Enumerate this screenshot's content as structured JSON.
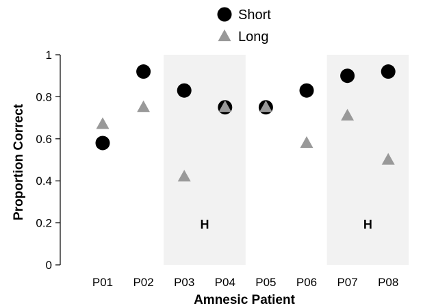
{
  "chart_data": {
    "type": "scatter",
    "categories": [
      "P01",
      "P02",
      "P03",
      "P04",
      "P05",
      "P06",
      "P07",
      "P08"
    ],
    "series": [
      {
        "name": "Short",
        "marker": "circle",
        "color": "#000000",
        "values": [
          0.58,
          0.92,
          0.83,
          0.75,
          0.75,
          0.83,
          0.9,
          0.92
        ]
      },
      {
        "name": "Long",
        "marker": "triangle",
        "color": "#999999",
        "values": [
          0.67,
          0.75,
          0.42,
          0.75,
          0.75,
          0.58,
          0.71,
          0.5
        ]
      }
    ],
    "xlabel": "Amnesic Patient",
    "ylabel": "Proportion Correct",
    "ylim": [
      0,
      1
    ],
    "yticks": [
      0,
      0.2,
      0.4,
      0.6,
      0.8,
      1
    ],
    "ytick_labels": [
      "0",
      "0.2",
      "0.4",
      "0.6",
      "0.8",
      "1"
    ],
    "legend_position": "top-center",
    "grid": false,
    "shaded_bands": [
      {
        "categories": [
          "P03",
          "P04"
        ],
        "label": "H",
        "color": "#f2f2f2"
      },
      {
        "categories": [
          "P07",
          "P08"
        ],
        "label": "H",
        "color": "#f2f2f2"
      }
    ]
  }
}
